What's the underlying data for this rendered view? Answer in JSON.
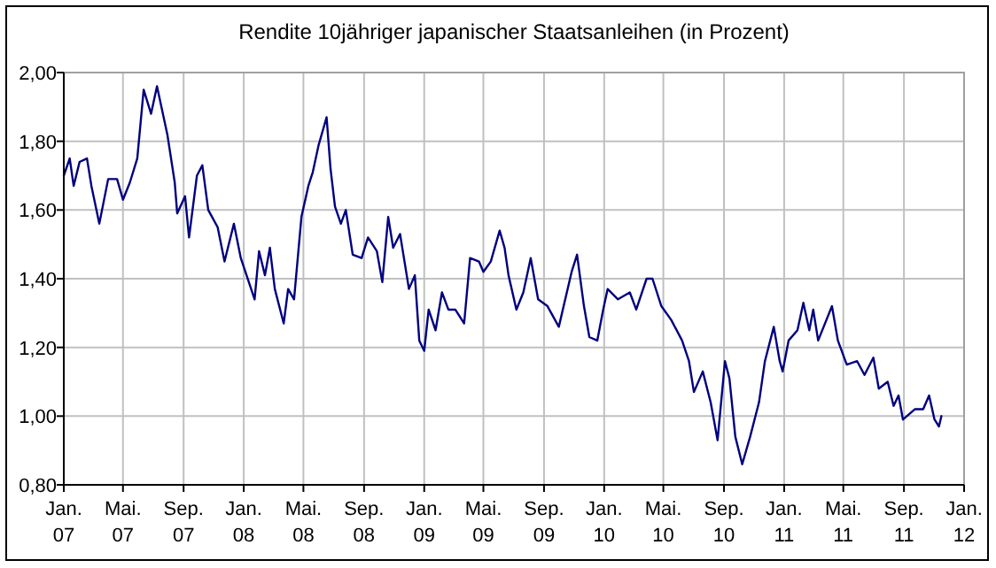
{
  "chart_data": {
    "type": "line",
    "title": "Rendite 10jähriger japanischer Staatsanleihen (in Prozent)",
    "x": [
      "2007-01-01",
      "2007-01-13",
      "2007-01-21",
      "2007-02-02",
      "2007-02-17",
      "2007-02-26",
      "2007-03-14",
      "2007-04-01",
      "2007-04-19",
      "2007-05-01",
      "2007-05-15",
      "2007-05-30",
      "2007-06-12",
      "2007-06-27",
      "2007-07-09",
      "2007-07-30",
      "2007-08-14",
      "2007-08-19",
      "2007-09-04",
      "2007-09-12",
      "2007-09-28",
      "2007-10-09",
      "2007-10-21",
      "2007-11-09",
      "2007-11-23",
      "2007-12-12",
      "2007-12-26",
      "2008-01-23",
      "2008-02-01",
      "2008-02-13",
      "2008-02-23",
      "2008-03-04",
      "2008-03-22",
      "2008-03-31",
      "2008-04-12",
      "2008-04-27",
      "2008-05-11",
      "2008-05-20",
      "2008-06-01",
      "2008-06-17",
      "2008-06-25",
      "2008-07-04",
      "2008-07-16",
      "2008-07-26",
      "2008-08-09",
      "2008-08-27",
      "2008-09-09",
      "2008-09-27",
      "2008-10-08",
      "2008-10-20",
      "2008-10-30",
      "2008-11-13",
      "2008-12-01",
      "2008-12-13",
      "2008-12-22",
      "2009-01-01",
      "2009-01-10",
      "2009-01-24",
      "2009-02-06",
      "2009-02-19",
      "2009-03-05",
      "2009-03-23",
      "2009-04-04",
      "2009-04-22",
      "2009-05-01",
      "2009-05-16",
      "2009-06-03",
      "2009-06-13",
      "2009-06-21",
      "2009-07-07",
      "2009-07-21",
      "2009-08-05",
      "2009-08-20",
      "2009-09-08",
      "2009-10-01",
      "2009-10-27",
      "2009-11-07",
      "2009-11-21",
      "2009-12-02",
      "2009-12-18",
      "2009-12-30",
      "2010-01-08",
      "2010-01-29",
      "2010-02-22",
      "2010-03-07",
      "2010-03-28",
      "2010-04-09",
      "2010-04-27",
      "2010-05-17",
      "2010-06-08",
      "2010-06-22",
      "2010-07-02",
      "2010-07-20",
      "2010-08-05",
      "2010-08-19",
      "2010-09-03",
      "2010-09-12",
      "2010-09-24",
      "2010-10-08",
      "2010-10-24",
      "2010-11-11",
      "2010-11-23",
      "2010-12-11",
      "2010-12-23",
      "2010-12-29",
      "2011-01-10",
      "2011-01-28",
      "2011-02-09",
      "2011-02-21",
      "2011-03-01",
      "2011-03-11",
      "2011-04-08",
      "2011-04-20",
      "2011-05-08",
      "2011-05-29",
      "2011-06-13",
      "2011-07-01",
      "2011-07-12",
      "2011-07-30",
      "2011-08-11",
      "2011-08-21",
      "2011-08-30",
      "2011-09-23",
      "2011-10-10",
      "2011-10-22",
      "2011-11-02",
      "2011-11-11",
      "2011-11-16"
    ],
    "series": [
      {
        "color": "#000080",
        "values": [
          1.7,
          1.75,
          1.67,
          1.74,
          1.75,
          1.67,
          1.56,
          1.69,
          1.69,
          1.63,
          1.68,
          1.75,
          1.95,
          1.88,
          1.96,
          1.82,
          1.68,
          1.59,
          1.64,
          1.52,
          1.7,
          1.73,
          1.6,
          1.55,
          1.45,
          1.56,
          1.46,
          1.34,
          1.48,
          1.41,
          1.49,
          1.37,
          1.27,
          1.37,
          1.34,
          1.58,
          1.67,
          1.71,
          1.79,
          1.87,
          1.72,
          1.61,
          1.56,
          1.6,
          1.47,
          1.46,
          1.52,
          1.48,
          1.39,
          1.58,
          1.49,
          1.53,
          1.37,
          1.41,
          1.22,
          1.19,
          1.31,
          1.25,
          1.36,
          1.31,
          1.31,
          1.27,
          1.46,
          1.45,
          1.42,
          1.45,
          1.54,
          1.49,
          1.41,
          1.31,
          1.36,
          1.46,
          1.34,
          1.32,
          1.26,
          1.42,
          1.47,
          1.32,
          1.23,
          1.22,
          1.31,
          1.37,
          1.34,
          1.36,
          1.31,
          1.4,
          1.4,
          1.32,
          1.28,
          1.22,
          1.16,
          1.07,
          1.13,
          1.04,
          0.93,
          1.16,
          1.11,
          0.94,
          0.86,
          0.94,
          1.04,
          1.16,
          1.26,
          1.16,
          1.13,
          1.22,
          1.25,
          1.33,
          1.25,
          1.31,
          1.22,
          1.32,
          1.22,
          1.15,
          1.16,
          1.12,
          1.17,
          1.08,
          1.1,
          1.03,
          1.06,
          0.99,
          1.02,
          1.02,
          1.06,
          0.99,
          0.97,
          1.0
        ]
      }
    ],
    "xlim": [
      "2007-01-01",
      "2012-01-01"
    ],
    "xticks": [
      {
        "value": "2007-01-01",
        "label": "Jan. 07"
      },
      {
        "value": "2007-05-01",
        "label": "Mai. 07"
      },
      {
        "value": "2007-09-01",
        "label": "Sep. 07"
      },
      {
        "value": "2008-01-01",
        "label": "Jan. 08"
      },
      {
        "value": "2008-05-01",
        "label": "Mai. 08"
      },
      {
        "value": "2008-09-01",
        "label": "Sep. 08"
      },
      {
        "value": "2009-01-01",
        "label": "Jan. 09"
      },
      {
        "value": "2009-05-01",
        "label": "Mai. 09"
      },
      {
        "value": "2009-09-01",
        "label": "Sep. 09"
      },
      {
        "value": "2010-01-01",
        "label": "Jan. 10"
      },
      {
        "value": "2010-05-01",
        "label": "Mai. 10"
      },
      {
        "value": "2010-09-01",
        "label": "Sep. 10"
      },
      {
        "value": "2011-01-01",
        "label": "Jan. 11"
      },
      {
        "value": "2011-05-01",
        "label": "Mai. 11"
      },
      {
        "value": "2011-09-01",
        "label": "Sep. 11"
      },
      {
        "value": "2012-01-01",
        "label": "Jan. 12"
      }
    ],
    "ylim": [
      0.8,
      2.0
    ],
    "yticks": [
      {
        "value": 0.8,
        "label": "0,80"
      },
      {
        "value": 1.0,
        "label": "1,00"
      },
      {
        "value": 1.2,
        "label": "1,20"
      },
      {
        "value": 1.4,
        "label": "1,40"
      },
      {
        "value": 1.6,
        "label": "1,60"
      },
      {
        "value": 1.8,
        "label": "1,80"
      },
      {
        "value": 2.0,
        "label": "2,00"
      }
    ],
    "grid": true,
    "marker": "none",
    "line_style": "solid"
  }
}
